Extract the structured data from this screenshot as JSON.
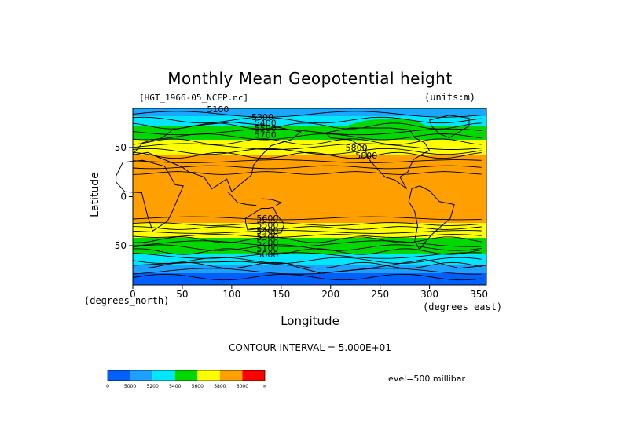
{
  "chart_data": {
    "type": "heatmap",
    "title": "Monthly Mean Geopotential height",
    "file_label": "[HGT_1966-05_NCEP.nc]",
    "units_label": "(units:m)",
    "xlabel": "Longitude",
    "ylabel": "Latitude",
    "x_unit_label": "(degrees_east)",
    "y_unit_label": "(degrees_north)",
    "xlim": [
      0,
      357.5
    ],
    "ylim": [
      -90,
      90
    ],
    "x_ticks": [
      "0",
      "50",
      "100",
      "150",
      "200",
      "250",
      "300",
      "350"
    ],
    "y_ticks": [
      "50",
      "0",
      "-50"
    ],
    "contour_interval_text": "CONTOUR INTERVAL = 5.000E+01",
    "level_text": "level=500 millibar",
    "colorbar": {
      "colors": [
        "#0060ff",
        "#1ea0ff",
        "#00e6ff",
        "#00d800",
        "#ffff00",
        "#ff9f00",
        "#ff0000"
      ],
      "labels": [
        "0",
        "5000",
        "5200",
        "5400",
        "5600",
        "5800",
        "6000",
        "∞"
      ]
    },
    "contour_labels": [
      "5100",
      "5300",
      "5400",
      "5500",
      "5700",
      "5800",
      "5800",
      "5600",
      "5500",
      "5400",
      "5300",
      "5200",
      "5100",
      "5000"
    ],
    "bands": [
      {
        "lat_top": 90,
        "lat_bottom": 82,
        "color": "#00e6ff"
      },
      {
        "lat_top": 82,
        "lat_bottom": 72,
        "color": "#00e6ff"
      },
      {
        "lat_top": 72,
        "lat_bottom": 58,
        "color": "#00d800"
      },
      {
        "lat_top": 58,
        "lat_bottom": 42,
        "color": "#ffff00"
      },
      {
        "lat_top": 42,
        "lat_bottom": -27,
        "color": "#ff9f00"
      },
      {
        "lat_top": -27,
        "lat_bottom": -42,
        "color": "#ffff00"
      },
      {
        "lat_top": -42,
        "lat_bottom": -58,
        "color": "#00d800"
      },
      {
        "lat_top": -58,
        "lat_bottom": -70,
        "color": "#00e6ff"
      },
      {
        "lat_top": -70,
        "lat_bottom": -90,
        "color": "#1ea0ff"
      }
    ]
  }
}
